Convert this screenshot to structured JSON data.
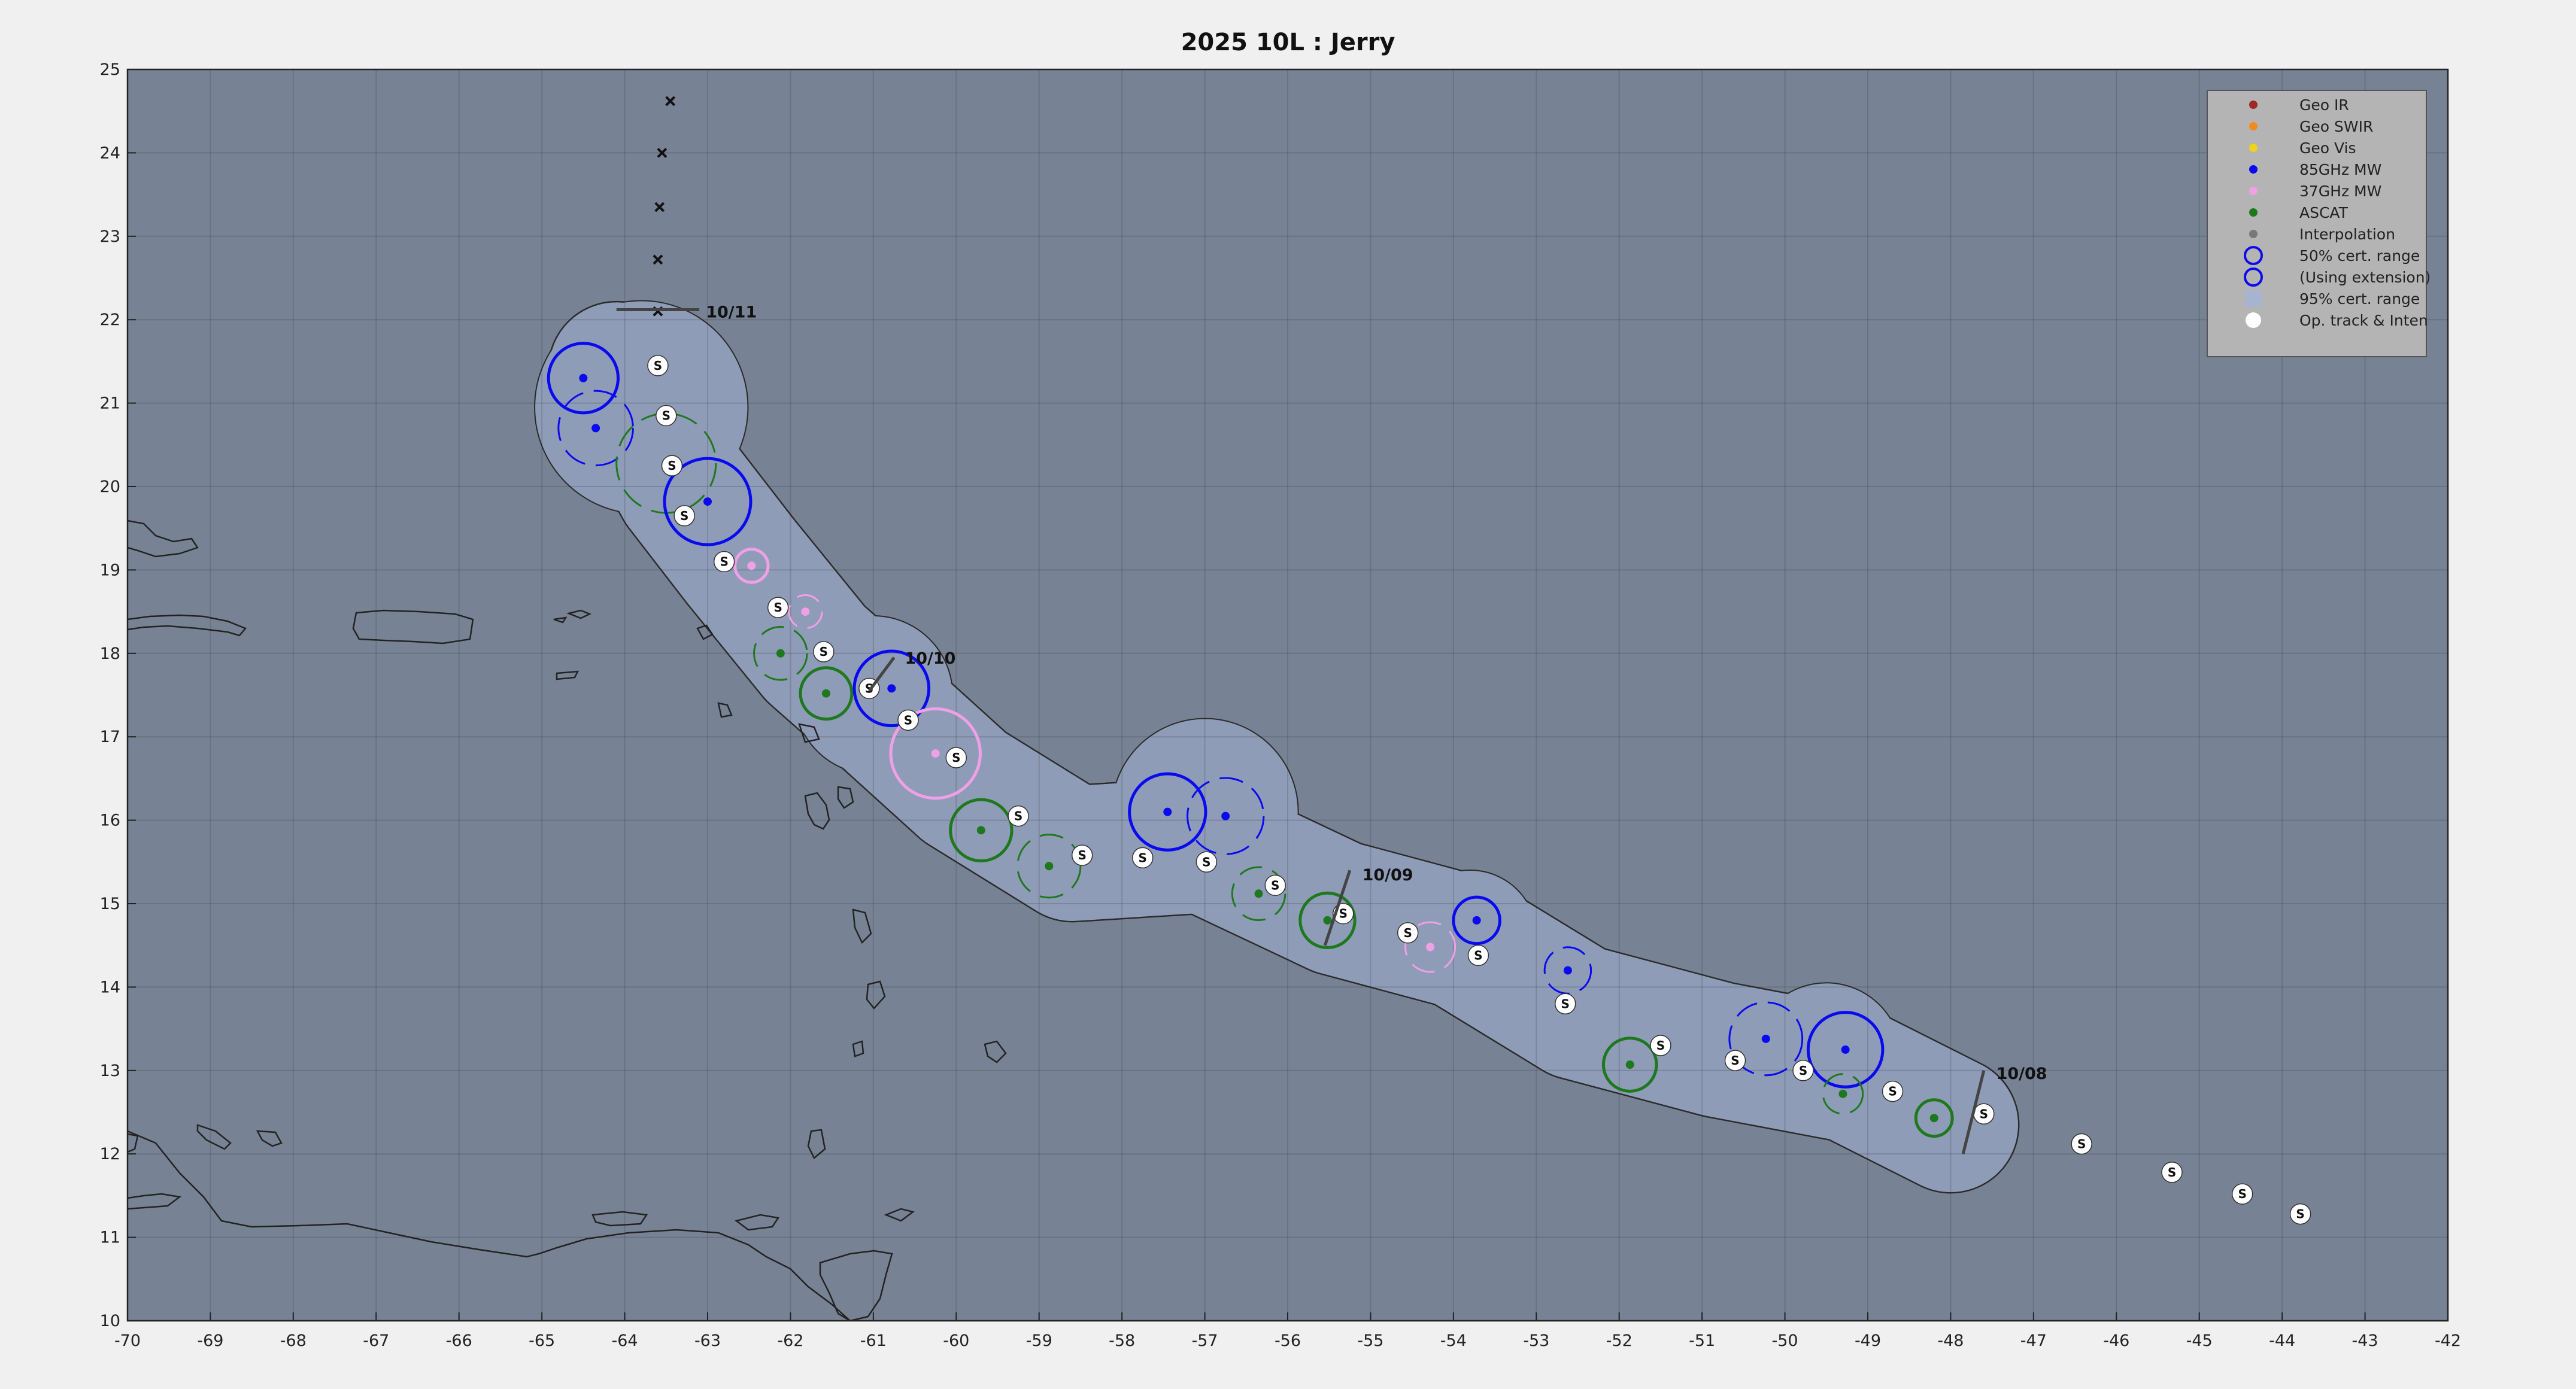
{
  "title": "2025  10L :  Jerry",
  "chart_data": {
    "type": "scatter",
    "xlim": [
      -70,
      -42
    ],
    "ylim": [
      10,
      25
    ],
    "x_ticks": [
      -70,
      -69,
      -68,
      -67,
      -66,
      -65,
      -64,
      -63,
      -62,
      -61,
      -60,
      -59,
      -58,
      -57,
      -56,
      -55,
      -54,
      -53,
      -52,
      -51,
      -50,
      -49,
      -48,
      -47,
      -46,
      -45,
      -44,
      -43,
      -42
    ],
    "y_ticks": [
      10,
      11,
      12,
      13,
      14,
      15,
      16,
      17,
      18,
      19,
      20,
      21,
      22,
      23,
      24,
      25
    ],
    "grid": true,
    "legend_position": "top-right",
    "legend": [
      {
        "label": "Geo IR",
        "kind": "dot",
        "color": "#a02828"
      },
      {
        "label": "Geo SWIR",
        "kind": "dot",
        "color": "#f08c1e"
      },
      {
        "label": "Geo Vis",
        "kind": "dot",
        "color": "#f0d21e"
      },
      {
        "label": "85GHz MW",
        "kind": "dot",
        "color": "#0a0af0"
      },
      {
        "label": "37GHz MW",
        "kind": "dot",
        "color": "#f0a0e6"
      },
      {
        "label": "ASCAT",
        "kind": "dot",
        "color": "#1e781e"
      },
      {
        "label": "Interpolation",
        "kind": "dot",
        "color": "#787878"
      },
      {
        "label": "50% cert. range",
        "kind": "ring",
        "color": "#0a0af0"
      },
      {
        "label": "(Using extension)",
        "kind": "ring",
        "color": "#0a0af0"
      },
      {
        "label": "95% cert. range",
        "kind": "patch",
        "color": "#a8b4cf"
      },
      {
        "label": "Op. track & Inten",
        "kind": "dot",
        "color": "#ffffff"
      }
    ],
    "colors": {
      "ocean": "#778394",
      "cone": "#8f9cb7",
      "mw85": "#0a0af0",
      "mw37": "#f0a0e6",
      "ascat": "#1e781e",
      "land_outline": "#222222"
    },
    "fixes": [
      {
        "type": "mw85",
        "x": -64.5,
        "y": 21.3,
        "r": 0.42,
        "ext": false
      },
      {
        "type": "mw85",
        "x": -64.35,
        "y": 20.7,
        "r": 0.45,
        "ext": true
      },
      {
        "type": "ascat",
        "x": -63.5,
        "y": 20.28,
        "r": 0.6,
        "ext": true
      },
      {
        "type": "mw85",
        "x": -63.0,
        "y": 19.82,
        "r": 0.52,
        "ext": false
      },
      {
        "type": "mw37",
        "x": -62.47,
        "y": 19.05,
        "r": 0.2,
        "ext": false
      },
      {
        "type": "mw37",
        "x": -61.82,
        "y": 18.5,
        "r": 0.2,
        "ext": true
      },
      {
        "type": "ascat",
        "x": -62.12,
        "y": 18.0,
        "r": 0.32,
        "ext": true
      },
      {
        "type": "ascat",
        "x": -61.57,
        "y": 17.52,
        "r": 0.31,
        "ext": false
      },
      {
        "type": "mw85",
        "x": -60.78,
        "y": 17.58,
        "r": 0.45,
        "ext": false
      },
      {
        "type": "mw37",
        "x": -60.25,
        "y": 16.8,
        "r": 0.54,
        "ext": false
      },
      {
        "type": "ascat",
        "x": -59.7,
        "y": 15.88,
        "r": 0.37,
        "ext": false
      },
      {
        "type": "ascat",
        "x": -58.88,
        "y": 15.45,
        "r": 0.38,
        "ext": true
      },
      {
        "type": "mw85",
        "x": -57.45,
        "y": 16.1,
        "r": 0.46,
        "ext": false
      },
      {
        "type": "mw85",
        "x": -56.75,
        "y": 16.05,
        "r": 0.46,
        "ext": true
      },
      {
        "type": "ascat",
        "x": -56.35,
        "y": 15.12,
        "r": 0.32,
        "ext": true
      },
      {
        "type": "ascat",
        "x": -55.52,
        "y": 14.8,
        "r": 0.33,
        "ext": false
      },
      {
        "type": "mw37",
        "x": -54.28,
        "y": 14.48,
        "r": 0.3,
        "ext": true
      },
      {
        "type": "mw85",
        "x": -53.72,
        "y": 14.8,
        "r": 0.28,
        "ext": false
      },
      {
        "type": "mw85",
        "x": -52.62,
        "y": 14.2,
        "r": 0.28,
        "ext": true
      },
      {
        "type": "ascat",
        "x": -51.87,
        "y": 13.07,
        "r": 0.32,
        "ext": false
      },
      {
        "type": "mw85",
        "x": -50.23,
        "y": 13.38,
        "r": 0.44,
        "ext": true
      },
      {
        "type": "mw85",
        "x": -49.27,
        "y": 13.25,
        "r": 0.45,
        "ext": false
      },
      {
        "type": "ascat",
        "x": -49.3,
        "y": 12.72,
        "r": 0.24,
        "ext": true
      },
      {
        "type": "ascat",
        "x": -48.2,
        "y": 12.43,
        "r": 0.22,
        "ext": false
      }
    ],
    "op_track": [
      {
        "x": -47.6,
        "y": 12.48,
        "label": "S"
      },
      {
        "x": -46.42,
        "y": 12.12,
        "label": "S"
      },
      {
        "x": -45.33,
        "y": 11.78,
        "label": "S"
      },
      {
        "x": -44.48,
        "y": 11.52,
        "label": "S"
      },
      {
        "x": -43.78,
        "y": 11.28,
        "label": "S"
      },
      {
        "x": -48.7,
        "y": 12.75,
        "label": "S"
      },
      {
        "x": -49.78,
        "y": 13.0,
        "label": "S"
      },
      {
        "x": -50.6,
        "y": 13.12,
        "label": "S"
      },
      {
        "x": -51.5,
        "y": 13.3,
        "label": "S"
      },
      {
        "x": -52.65,
        "y": 13.8,
        "label": "S"
      },
      {
        "x": -53.7,
        "y": 14.38,
        "label": "S"
      },
      {
        "x": -54.55,
        "y": 14.65,
        "label": "S"
      },
      {
        "x": -55.33,
        "y": 14.88,
        "label": "S"
      },
      {
        "x": -56.15,
        "y": 15.22,
        "label": "S"
      },
      {
        "x": -56.98,
        "y": 15.5,
        "label": "S"
      },
      {
        "x": -57.75,
        "y": 15.55,
        "label": "S"
      },
      {
        "x": -58.48,
        "y": 15.58,
        "label": "S"
      },
      {
        "x": -59.25,
        "y": 16.05,
        "label": "S"
      },
      {
        "x": -60.0,
        "y": 16.75,
        "label": "S"
      },
      {
        "x": -60.58,
        "y": 17.2,
        "label": "S"
      },
      {
        "x": -61.05,
        "y": 17.58,
        "label": "S"
      },
      {
        "x": -61.6,
        "y": 18.02,
        "label": "S"
      },
      {
        "x": -62.15,
        "y": 18.55,
        "label": "S"
      },
      {
        "x": -62.8,
        "y": 19.1,
        "label": "S"
      },
      {
        "x": -63.28,
        "y": 19.65,
        "label": "S"
      },
      {
        "x": -63.43,
        "y": 20.25,
        "label": "S"
      },
      {
        "x": -63.5,
        "y": 20.85,
        "label": "S"
      },
      {
        "x": -63.6,
        "y": 21.45,
        "label": "S"
      }
    ],
    "forecast_points": [
      {
        "x": -63.6,
        "y": 22.1
      },
      {
        "x": -63.6,
        "y": 22.72
      },
      {
        "x": -63.58,
        "y": 23.35
      },
      {
        "x": -63.55,
        "y": 24.0
      },
      {
        "x": -63.45,
        "y": 24.62
      }
    ],
    "date_labels": [
      {
        "label": "10/08",
        "x": -47.45,
        "y": 12.97
      },
      {
        "label": "10/09",
        "x": -55.1,
        "y": 15.35
      },
      {
        "label": "10/10",
        "x": -60.62,
        "y": 17.95
      },
      {
        "label": "10/11",
        "x": -63.02,
        "y": 22.1
      }
    ]
  }
}
